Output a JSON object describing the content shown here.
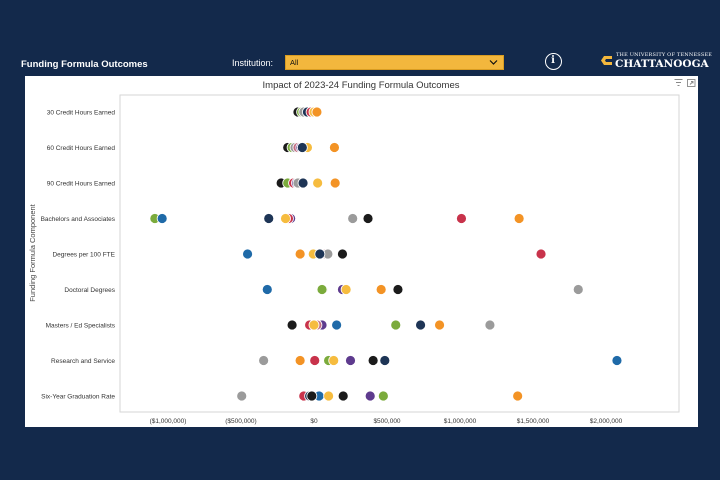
{
  "header": {
    "app_title": "Funding Formula Outcomes",
    "institution_label": "Institution:",
    "institution_value": "All",
    "logo_line1": "THE UNIVERSITY OF TENNESSEE",
    "logo_line2": "CHATTANOOGA"
  },
  "colors": {
    "background": "#13294b",
    "accent": "#f3b73d",
    "black": "#1b1b1b",
    "navy": "#1e3556",
    "blue": "#1f6aa8",
    "orange": "#f39325",
    "gold": "#f6bc3f",
    "green": "#7bab3c",
    "purple": "#5e3b8e",
    "red": "#c8334b",
    "gray": "#9b9b9b",
    "pink": "#c26d82"
  },
  "chart_data": {
    "type": "scatter",
    "title": "Impact of 2023-24 Funding Formula Outcomes",
    "ylabel": "Funding Formula Component",
    "xlabel": "",
    "xlim": [
      -1200000,
      2450000
    ],
    "x_ticks": [
      -1000000,
      -500000,
      0,
      500000,
      1000000,
      1500000,
      2000000
    ],
    "x_tick_labels": [
      "($1,000,000)",
      "($500,000)",
      "$0",
      "$500,000",
      "$1,000,000",
      "$1,500,000",
      "$2,000,000"
    ],
    "categories": [
      "30 Credit Hours Earned",
      "60 Credit Hours Earned",
      "90 Credit Hours Earned",
      "Bachelors and Associates",
      "Degrees per 100 FTE",
      "Doctoral Degrees",
      "Masters / Ed Specialists",
      "Research and Service",
      "Six-Year Graduation Rate"
    ],
    "grid": false,
    "legend": "none",
    "points": [
      {
        "category": 0,
        "x": -110000,
        "color": "black"
      },
      {
        "category": 0,
        "x": -85000,
        "color": "green"
      },
      {
        "category": 0,
        "x": -70000,
        "color": "gray"
      },
      {
        "category": 0,
        "x": -45000,
        "color": "navy"
      },
      {
        "category": 0,
        "x": -20000,
        "color": "red"
      },
      {
        "category": 0,
        "x": 0,
        "color": "gold"
      },
      {
        "category": 0,
        "x": 20000,
        "color": "orange"
      },
      {
        "category": 1,
        "x": -180000,
        "color": "black"
      },
      {
        "category": 1,
        "x": -150000,
        "color": "green"
      },
      {
        "category": 1,
        "x": -130000,
        "color": "gray"
      },
      {
        "category": 1,
        "x": -110000,
        "color": "pink"
      },
      {
        "category": 1,
        "x": -90000,
        "color": "purple"
      },
      {
        "category": 1,
        "x": -45000,
        "color": "gold"
      },
      {
        "category": 1,
        "x": -80000,
        "color": "navy"
      },
      {
        "category": 1,
        "x": 140000,
        "color": "orange"
      },
      {
        "category": 2,
        "x": -225000,
        "color": "black"
      },
      {
        "category": 2,
        "x": -180000,
        "color": "green"
      },
      {
        "category": 2,
        "x": -140000,
        "color": "red"
      },
      {
        "category": 2,
        "x": -120000,
        "color": "purple"
      },
      {
        "category": 2,
        "x": -110000,
        "color": "gray"
      },
      {
        "category": 2,
        "x": -75000,
        "color": "navy"
      },
      {
        "category": 2,
        "x": 25000,
        "color": "gold"
      },
      {
        "category": 2,
        "x": 145000,
        "color": "orange"
      },
      {
        "category": 3,
        "x": -1090000,
        "color": "green"
      },
      {
        "category": 3,
        "x": -1040000,
        "color": "blue"
      },
      {
        "category": 3,
        "x": -310000,
        "color": "navy"
      },
      {
        "category": 3,
        "x": -160000,
        "color": "purple"
      },
      {
        "category": 3,
        "x": -175000,
        "color": "red"
      },
      {
        "category": 3,
        "x": -195000,
        "color": "gold"
      },
      {
        "category": 3,
        "x": 265000,
        "color": "gray"
      },
      {
        "category": 3,
        "x": 370000,
        "color": "black"
      },
      {
        "category": 3,
        "x": 1010000,
        "color": "red"
      },
      {
        "category": 3,
        "x": 1405000,
        "color": "orange"
      },
      {
        "category": 4,
        "x": -455000,
        "color": "blue"
      },
      {
        "category": 4,
        "x": -95000,
        "color": "orange"
      },
      {
        "category": 4,
        "x": -5000,
        "color": "gold"
      },
      {
        "category": 4,
        "x": 80000,
        "color": "pink"
      },
      {
        "category": 4,
        "x": 95000,
        "color": "gray"
      },
      {
        "category": 4,
        "x": 40000,
        "color": "navy"
      },
      {
        "category": 4,
        "x": 195000,
        "color": "black"
      },
      {
        "category": 4,
        "x": 1555000,
        "color": "red"
      },
      {
        "category": 5,
        "x": -320000,
        "color": "blue"
      },
      {
        "category": 5,
        "x": 60000,
        "color": "pink"
      },
      {
        "category": 5,
        "x": 55000,
        "color": "green"
      },
      {
        "category": 5,
        "x": 195000,
        "color": "purple"
      },
      {
        "category": 5,
        "x": 220000,
        "color": "gold"
      },
      {
        "category": 5,
        "x": 460000,
        "color": "orange"
      },
      {
        "category": 5,
        "x": 575000,
        "color": "black"
      },
      {
        "category": 5,
        "x": 1810000,
        "color": "gray"
      },
      {
        "category": 6,
        "x": -150000,
        "color": "black"
      },
      {
        "category": 6,
        "x": -30000,
        "color": "red"
      },
      {
        "category": 6,
        "x": 55000,
        "color": "purple"
      },
      {
        "category": 6,
        "x": 20000,
        "color": "pink"
      },
      {
        "category": 6,
        "x": 0,
        "color": "gold"
      },
      {
        "category": 6,
        "x": 155000,
        "color": "blue"
      },
      {
        "category": 6,
        "x": 560000,
        "color": "green"
      },
      {
        "category": 6,
        "x": 730000,
        "color": "navy"
      },
      {
        "category": 6,
        "x": 860000,
        "color": "orange"
      },
      {
        "category": 6,
        "x": 1205000,
        "color": "gray"
      },
      {
        "category": 7,
        "x": -345000,
        "color": "gray"
      },
      {
        "category": 7,
        "x": -95000,
        "color": "orange"
      },
      {
        "category": 7,
        "x": 5000,
        "color": "red"
      },
      {
        "category": 7,
        "x": 100000,
        "color": "green"
      },
      {
        "category": 7,
        "x": 135000,
        "color": "gold"
      },
      {
        "category": 7,
        "x": 250000,
        "color": "purple"
      },
      {
        "category": 7,
        "x": 405000,
        "color": "black"
      },
      {
        "category": 7,
        "x": 485000,
        "color": "navy"
      },
      {
        "category": 7,
        "x": 2075000,
        "color": "blue"
      },
      {
        "category": 8,
        "x": -495000,
        "color": "gray"
      },
      {
        "category": 8,
        "x": -70000,
        "color": "red"
      },
      {
        "category": 8,
        "x": -30000,
        "color": "navy"
      },
      {
        "category": 8,
        "x": 35000,
        "color": "blue"
      },
      {
        "category": 8,
        "x": -15000,
        "color": "black"
      },
      {
        "category": 8,
        "x": 100000,
        "color": "gold"
      },
      {
        "category": 8,
        "x": 200000,
        "color": "black"
      },
      {
        "category": 8,
        "x": 385000,
        "color": "purple"
      },
      {
        "category": 8,
        "x": 475000,
        "color": "green"
      },
      {
        "category": 8,
        "x": 1395000,
        "color": "orange"
      }
    ]
  }
}
